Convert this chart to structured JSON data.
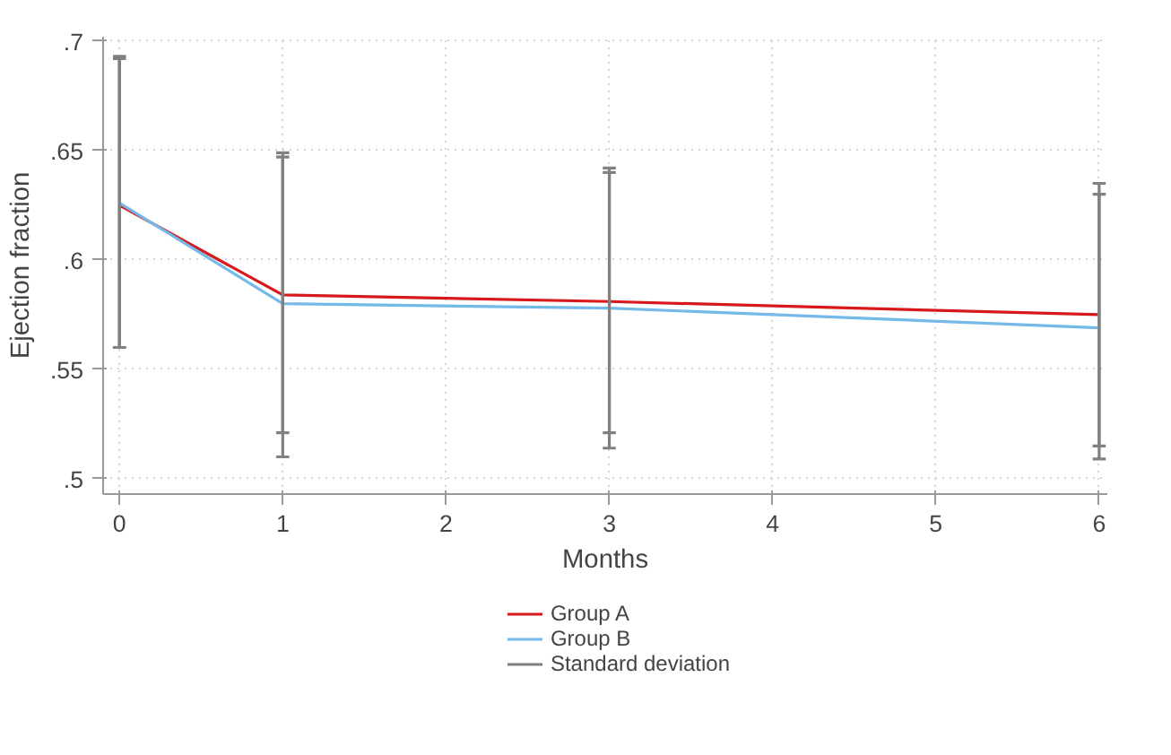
{
  "chart_data": {
    "type": "line",
    "xlabel": "Months",
    "ylabel": "Ejection fraction",
    "x": [
      0,
      1,
      3,
      6
    ],
    "series": [
      {
        "name": "Group A",
        "color": "#d7191c",
        "values": [
          0.625,
          0.584,
          0.581,
          0.575
        ],
        "errors": [
          [
            0.56,
            0.692
          ],
          [
            0.521,
            0.649
          ],
          [
            0.521,
            0.642
          ],
          [
            0.515,
            0.635
          ]
        ]
      },
      {
        "name": "Group B",
        "color": "#74b9e8",
        "values": [
          0.626,
          0.58,
          0.578,
          0.569
        ],
        "errors": [
          [
            0.56,
            0.693
          ],
          [
            0.51,
            0.647
          ],
          [
            0.514,
            0.64
          ],
          [
            0.509,
            0.63
          ]
        ]
      }
    ],
    "annotations": [
      "Standard deviation"
    ],
    "xlim": [
      -0.1,
      6.05
    ],
    "xticks": [
      0,
      1,
      2,
      3,
      4,
      5,
      6
    ],
    "ylim": [
      0.493,
      0.702
    ],
    "yticks": [
      {
        "value": 0.5,
        "label": ".5"
      },
      {
        "value": 0.55,
        "label": ".55"
      },
      {
        "value": 0.6,
        "label": ".6"
      },
      {
        "value": 0.65,
        "label": ".65"
      },
      {
        "value": 0.7,
        "label": ".7"
      }
    ],
    "grid": true,
    "legend": "bottom",
    "marker": "none",
    "line_style": "solid"
  }
}
